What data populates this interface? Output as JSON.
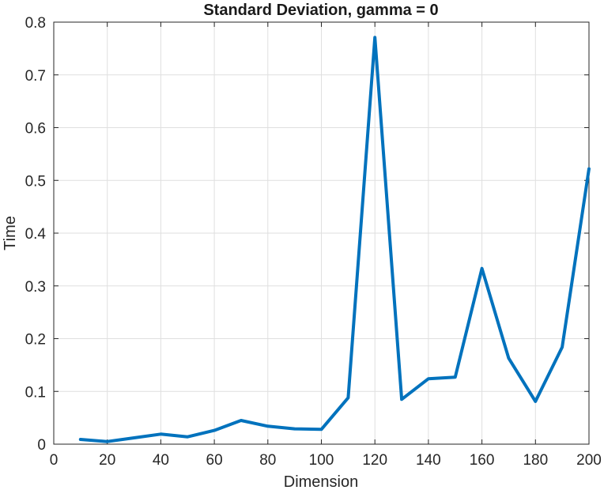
{
  "chart_data": {
    "type": "line",
    "title": "Standard Deviation, gamma = 0",
    "xlabel": "Dimension",
    "ylabel": "Time",
    "xlim": [
      0,
      200
    ],
    "ylim": [
      0,
      0.8
    ],
    "xticks": [
      "0",
      "20",
      "40",
      "60",
      "80",
      "100",
      "120",
      "140",
      "160",
      "180",
      "200"
    ],
    "yticks": [
      "0",
      "0.1",
      "0.2",
      "0.3",
      "0.4",
      "0.5",
      "0.6",
      "0.7",
      "0.8"
    ],
    "grid": true,
    "series": [
      {
        "color": "#0072BD",
        "x": [
          10,
          20,
          30,
          40,
          50,
          60,
          70,
          80,
          90,
          100,
          110,
          120,
          130,
          140,
          150,
          160,
          170,
          180,
          190,
          200
        ],
        "y": [
          0.009,
          0.005,
          0.012,
          0.019,
          0.014,
          0.026,
          0.045,
          0.034,
          0.029,
          0.028,
          0.088,
          0.771,
          0.085,
          0.124,
          0.127,
          0.333,
          0.163,
          0.081,
          0.184,
          0.522
        ]
      }
    ]
  }
}
